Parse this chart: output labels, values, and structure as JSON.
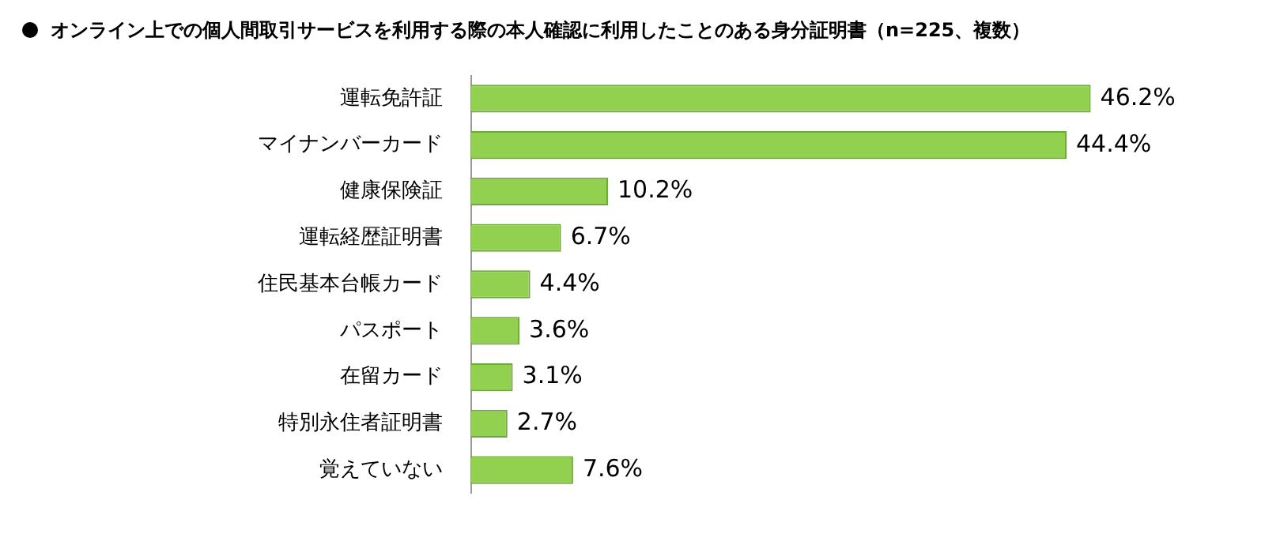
{
  "chart_data": {
    "type": "bar",
    "orientation": "horizontal",
    "title": "オンライン上での個人間取引サービスを利用する際の本人確認に利用したことのある身分証明書（n=225、複数）",
    "categories": [
      "運転免許証",
      "マイナンバーカード",
      "健康保険証",
      "運転経歴証明書",
      "住民基本台帳カード",
      "パスポート",
      "在留カード",
      "特別永住者証明書",
      "覚えていない"
    ],
    "values": [
      46.2,
      44.4,
      10.2,
      6.7,
      4.4,
      3.6,
      3.1,
      2.7,
      7.6
    ],
    "value_labels": [
      "46.2%",
      "44.4%",
      "10.2%",
      "6.7%",
      "4.4%",
      "3.6%",
      "3.1%",
      "2.7%",
      "7.6%"
    ],
    "color": "#92d050",
    "grid": false,
    "legend": false
  }
}
